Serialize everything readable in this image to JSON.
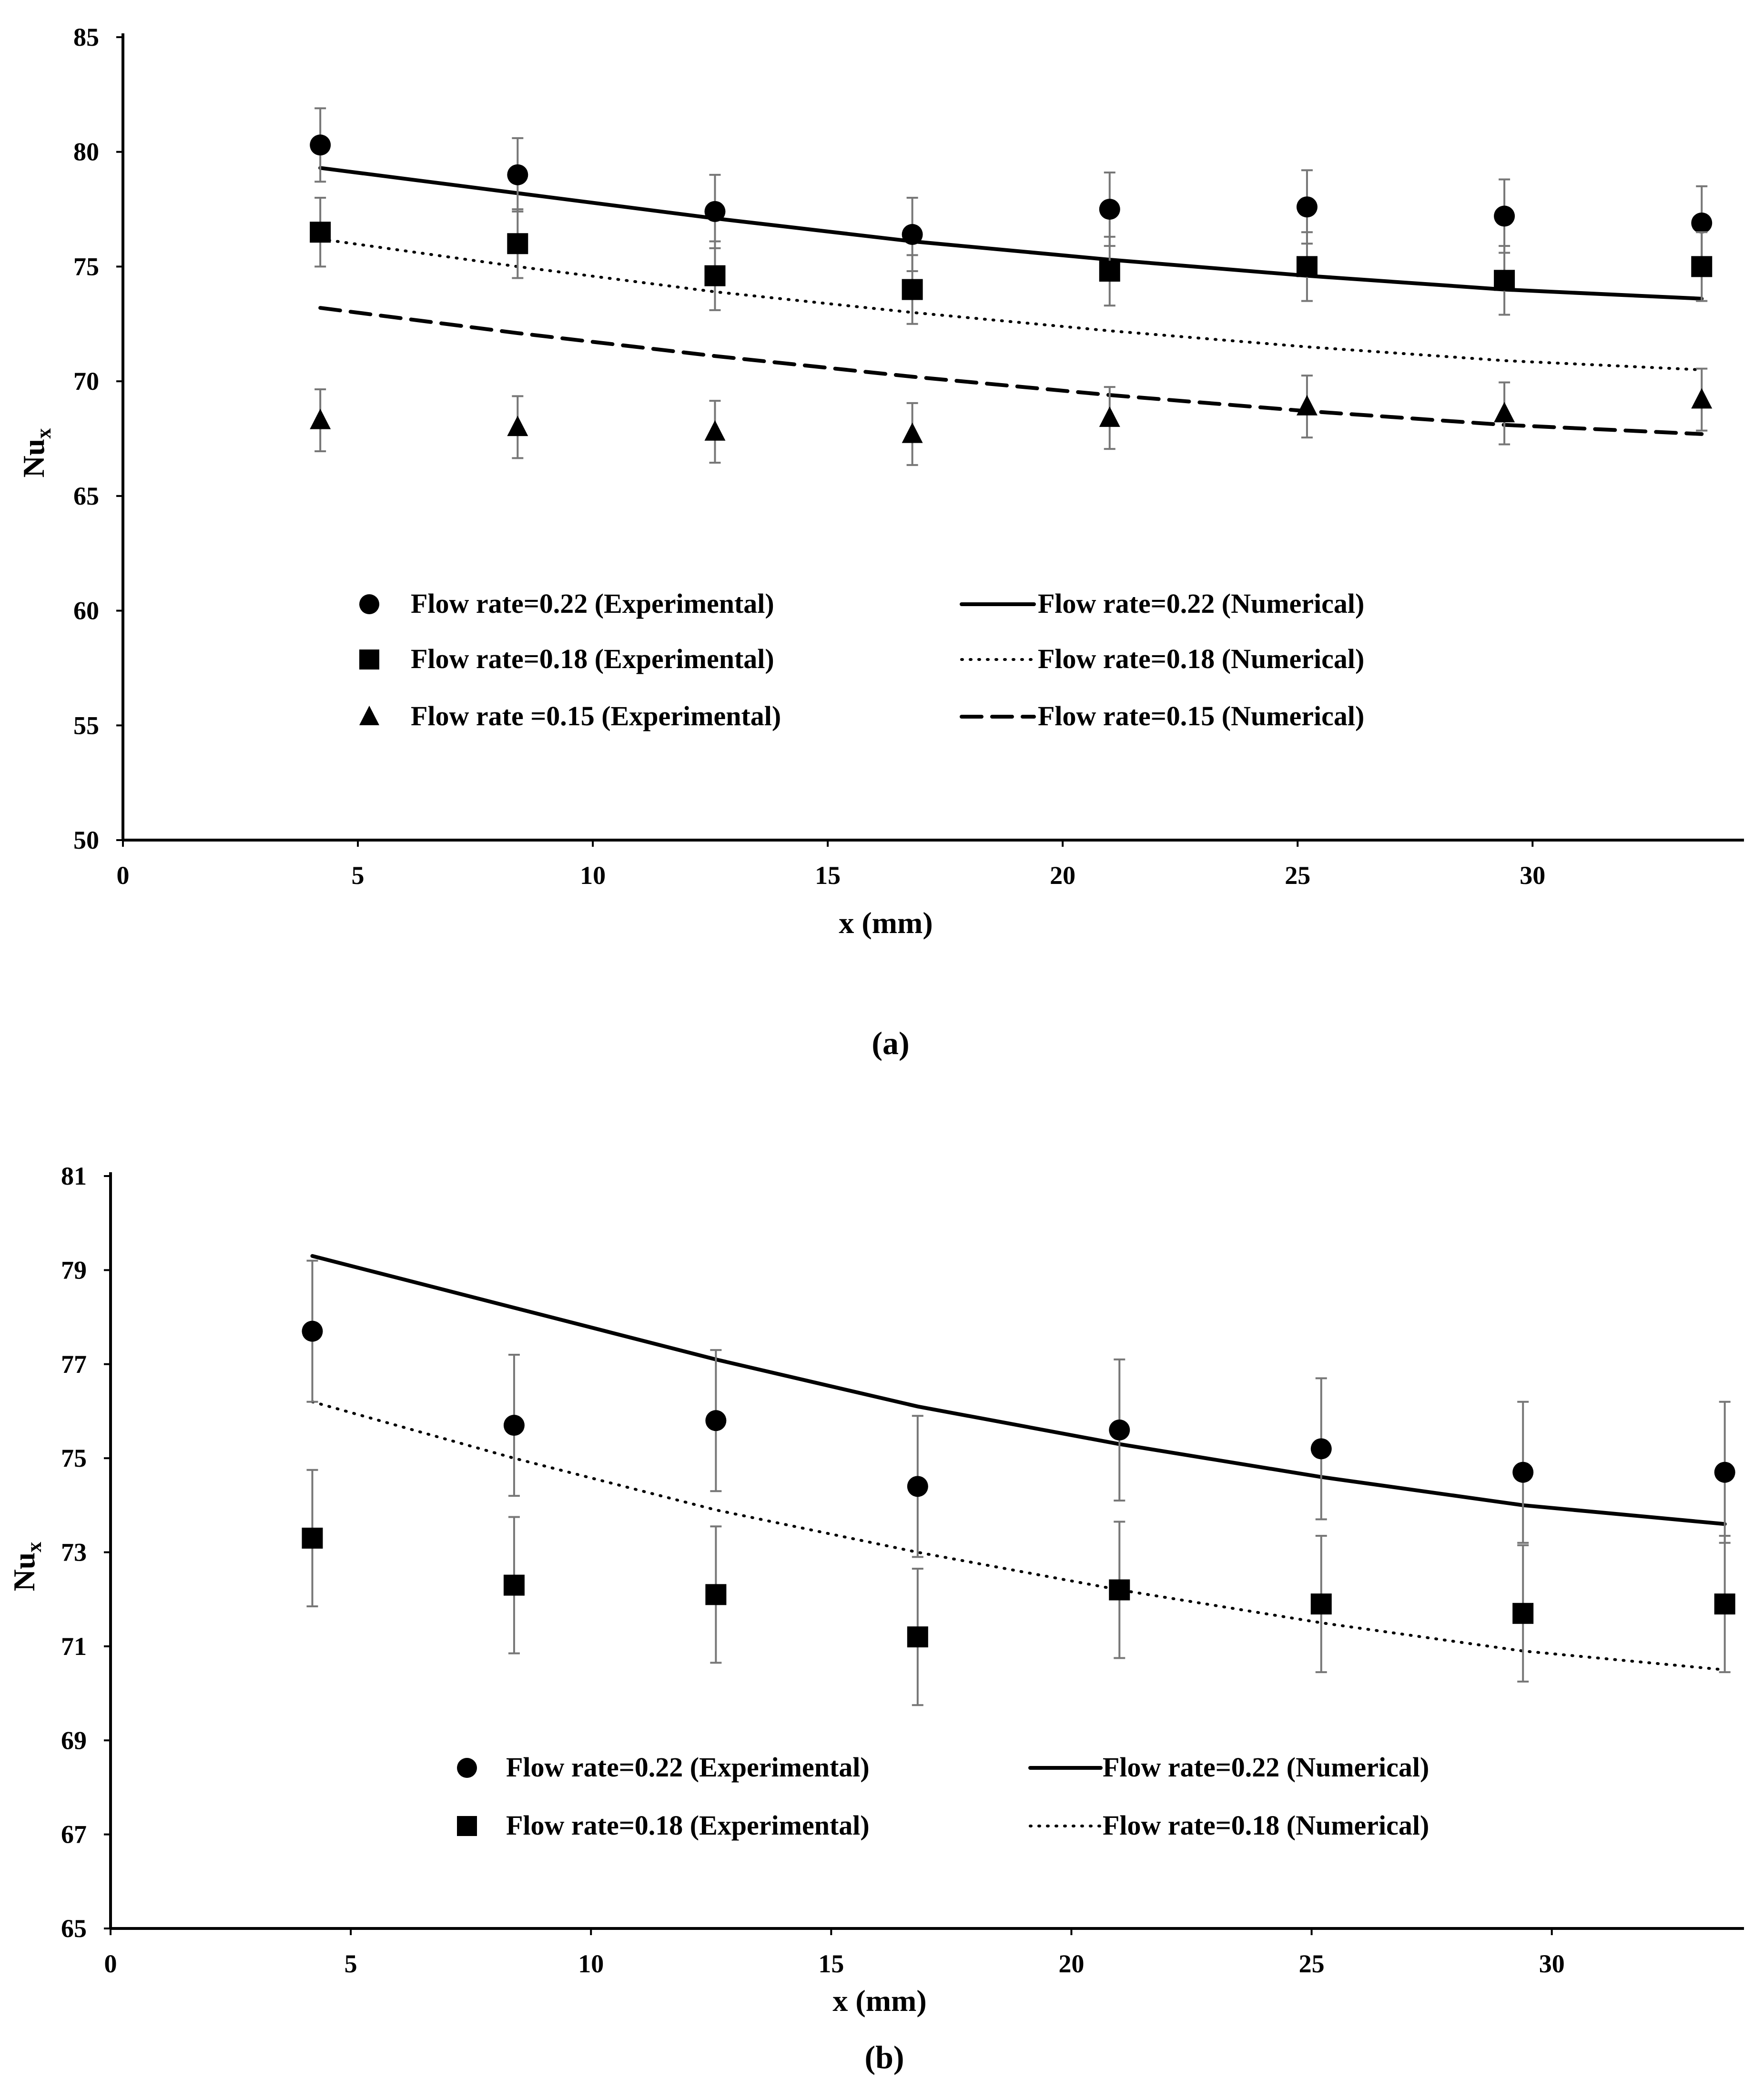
{
  "chart_data": [
    {
      "type": "scatter",
      "caption": "(a)",
      "xlabel": "x (mm)",
      "ylabel": "Nu",
      "ylabel_sub": "x",
      "xlim": [
        0,
        34.5
      ],
      "ylim": [
        50,
        85
      ],
      "xticks": [
        0,
        5,
        10,
        15,
        20,
        25,
        30
      ],
      "yticks": [
        50,
        55,
        60,
        65,
        70,
        75,
        80,
        85
      ],
      "grid": false,
      "legend_position": "center",
      "series": [
        {
          "name": "Flow rate=0.22 (Experimental)",
          "kind": "experimental",
          "marker": "circle",
          "x": [
            4.2,
            8.4,
            12.6,
            16.8,
            21.0,
            25.2,
            29.4,
            33.6
          ],
          "y": [
            80.3,
            79.0,
            77.4,
            76.4,
            77.5,
            77.6,
            77.2,
            76.9
          ],
          "err": 1.6
        },
        {
          "name": "Flow rate=0.18 (Experimental)",
          "kind": "experimental",
          "marker": "square",
          "x": [
            4.2,
            8.4,
            12.6,
            16.8,
            21.0,
            25.2,
            29.4,
            33.6
          ],
          "y": [
            76.5,
            76.0,
            74.6,
            74.0,
            74.8,
            75.0,
            74.4,
            75.0
          ],
          "err": 1.5
        },
        {
          "name": "Flow rate =0.15 (Experimental)",
          "kind": "experimental",
          "marker": "triangle",
          "x": [
            4.2,
            8.4,
            12.6,
            16.8,
            21.0,
            25.2,
            29.4,
            33.6
          ],
          "y": [
            68.3,
            68.0,
            67.8,
            67.7,
            68.4,
            68.9,
            68.6,
            69.2
          ],
          "err": 1.35
        },
        {
          "name": "Flow rate=0.22 (Numerical)",
          "kind": "numerical",
          "line": "solid",
          "x": [
            4.2,
            8.4,
            12.6,
            16.8,
            21.0,
            25.2,
            29.4,
            33.6
          ],
          "y": [
            79.3,
            78.2,
            77.1,
            76.1,
            75.3,
            74.6,
            74.0,
            73.6
          ]
        },
        {
          "name": "Flow rate=0.18 (Numerical)",
          "kind": "numerical",
          "line": "dotted",
          "x": [
            4.2,
            8.4,
            12.6,
            16.8,
            21.0,
            25.2,
            29.4,
            33.6
          ],
          "y": [
            76.2,
            75.0,
            73.9,
            73.0,
            72.2,
            71.5,
            70.9,
            70.5
          ]
        },
        {
          "name": "Flow rate=0.15 (Numerical)",
          "kind": "numerical",
          "line": "dashed",
          "x": [
            4.2,
            8.4,
            12.6,
            16.8,
            21.0,
            25.2,
            29.4,
            33.6
          ],
          "y": [
            73.2,
            72.1,
            71.1,
            70.2,
            69.4,
            68.7,
            68.1,
            67.7
          ]
        }
      ]
    },
    {
      "type": "scatter",
      "caption": "(b)",
      "xlabel": "x (mm)",
      "ylabel": "Nu",
      "ylabel_sub": "x",
      "xlim": [
        0,
        34.0
      ],
      "ylim": [
        65,
        81
      ],
      "xticks": [
        0,
        5,
        10,
        15,
        20,
        25,
        30
      ],
      "yticks": [
        65,
        67,
        69,
        71,
        73,
        75,
        77,
        79,
        81
      ],
      "grid": false,
      "legend_position": "bottom-center",
      "series": [
        {
          "name": "Flow rate=0.22 (Experimental)",
          "kind": "experimental",
          "marker": "circle",
          "x": [
            4.2,
            8.4,
            12.6,
            16.8,
            21.0,
            25.2,
            29.4,
            33.6
          ],
          "y": [
            77.7,
            75.7,
            75.8,
            74.4,
            75.6,
            75.2,
            74.7,
            74.7
          ],
          "err": 1.5
        },
        {
          "name": "Flow rate=0.18 (Experimental)",
          "kind": "experimental",
          "marker": "square",
          "x": [
            4.2,
            8.4,
            12.6,
            16.8,
            21.0,
            25.2,
            29.4,
            33.6
          ],
          "y": [
            73.3,
            72.3,
            72.1,
            71.2,
            72.2,
            71.9,
            71.7,
            71.9
          ],
          "err": 1.45
        },
        {
          "name": "Flow rate=0.22 (Numerical)",
          "kind": "numerical",
          "line": "solid",
          "x": [
            4.2,
            8.4,
            12.6,
            16.8,
            21.0,
            25.2,
            29.4,
            33.6
          ],
          "y": [
            79.3,
            78.2,
            77.1,
            76.1,
            75.3,
            74.6,
            74.0,
            73.6
          ]
        },
        {
          "name": "Flow rate=0.18 (Numerical)",
          "kind": "numerical",
          "line": "dotted",
          "x": [
            4.2,
            8.4,
            12.6,
            16.8,
            21.0,
            25.2,
            29.4,
            33.6
          ],
          "y": [
            76.2,
            75.0,
            73.9,
            73.0,
            72.2,
            71.5,
            70.9,
            70.5
          ]
        }
      ]
    }
  ]
}
